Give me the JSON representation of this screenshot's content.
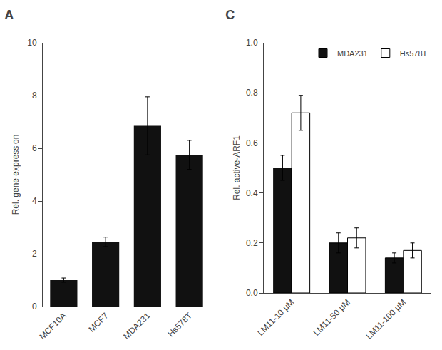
{
  "chart_data": [
    {
      "type": "bar",
      "title": "A",
      "categories": [
        "MCF10A",
        "MCF7",
        "MDA231",
        "Hs578T"
      ],
      "values": [
        1.0,
        2.45,
        6.85,
        5.75
      ],
      "errors": [
        0.08,
        0.18,
        1.1,
        0.55
      ],
      "color": "#111111",
      "ylabel": "Rel. gene expression",
      "ylim": [
        0,
        10
      ],
      "yticks": [
        0,
        2,
        4,
        6,
        8,
        10
      ],
      "grid": false
    },
    {
      "type": "bar",
      "title": "C",
      "categories": [
        "LM11-10 μM",
        "LM11-50 μM",
        "LM11-100 μM"
      ],
      "series": [
        {
          "name": "MDA231",
          "color": "#111111",
          "values": [
            0.5,
            0.2,
            0.14
          ],
          "errors": [
            0.05,
            0.04,
            0.02
          ]
        },
        {
          "name": "Hs578T",
          "color": "#ffffff",
          "values": [
            0.72,
            0.22,
            0.17
          ],
          "errors": [
            0.07,
            0.04,
            0.03
          ]
        }
      ],
      "ylabel": "Rel. active-ARF1",
      "ylim": [
        0,
        1.0
      ],
      "yticks": [
        {
          "value": 0.0,
          "label": "0.0"
        },
        0.2,
        0.4,
        0.6,
        0.8,
        {
          "value": 1.0,
          "label": "1.0"
        }
      ],
      "legend": "upper right",
      "grid": false
    }
  ]
}
